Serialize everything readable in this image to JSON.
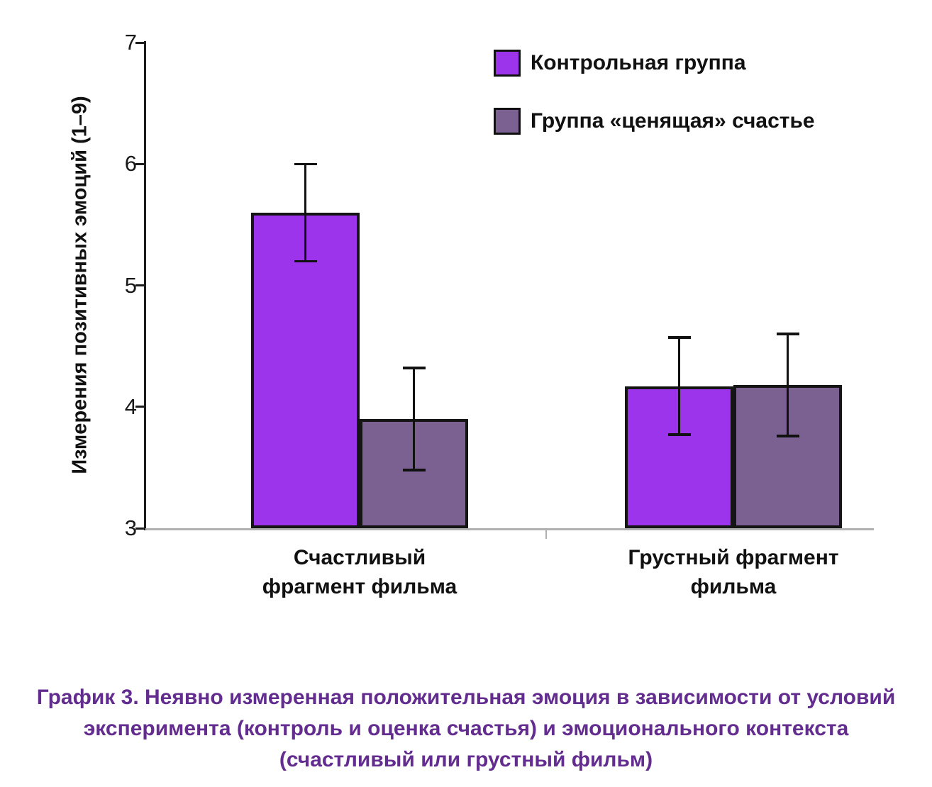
{
  "chart_data": {
    "type": "bar",
    "title": "",
    "ylabel": "Измерения позитивных эмоций (1–9)",
    "xlabel": "",
    "ylim": [
      3,
      7
    ],
    "yticks": [
      7,
      6,
      5,
      4,
      3
    ],
    "categories": [
      "Счастливый\nфрагмент фильма",
      "Грустный фрагмент\nфильма"
    ],
    "series": [
      {
        "name": "Контрольная группа",
        "color": "#9c34ec",
        "values": [
          5.6,
          4.17
        ],
        "errors": [
          0.4,
          0.4
        ]
      },
      {
        "name": "Группа «ценящая» счастье",
        "color": "#7a6191",
        "values": [
          3.9,
          4.18
        ],
        "errors": [
          0.42,
          0.42
        ]
      }
    ],
    "legend_position": "top-right",
    "grid": false
  },
  "caption": "График 3. Неявно измеренная положительная эмоция в зависимости от условий эксперимента (контроль и оценка счастья) и эмоционального контекста (счастливый или грустный фильм)",
  "colors": {
    "caption": "#632c8f",
    "axis": "#1c1c1c",
    "baseline": "#b0b0b0"
  }
}
